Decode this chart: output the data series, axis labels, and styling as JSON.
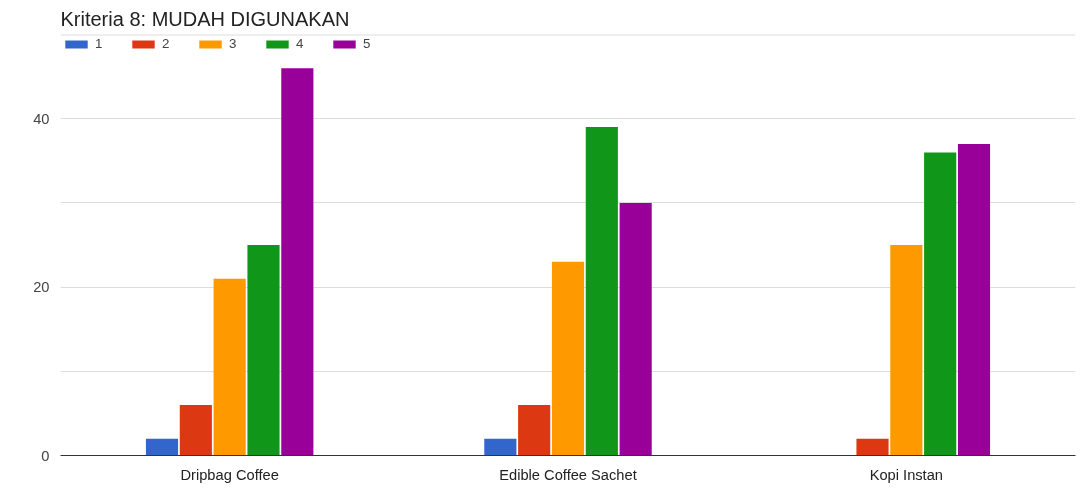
{
  "chart_data": {
    "type": "bar",
    "title": "Kriteria 8: MUDAH DIGUNAKAN",
    "categories": [
      "Dripbag Coffee",
      "Edible Coffee Sachet",
      "Kopi Instan"
    ],
    "series": [
      {
        "name": "1",
        "color": "#3366cc",
        "values": [
          2,
          2,
          0
        ]
      },
      {
        "name": "2",
        "color": "#dc3912",
        "values": [
          6,
          6,
          2
        ]
      },
      {
        "name": "3",
        "color": "#ff9900",
        "values": [
          21,
          23,
          25
        ]
      },
      {
        "name": "4",
        "color": "#109618",
        "values": [
          25,
          39,
          36
        ]
      },
      {
        "name": "5",
        "color": "#990099",
        "values": [
          46,
          30,
          37
        ]
      }
    ],
    "ylim": [
      0,
      50
    ],
    "yticks": [
      0,
      {
        "value": 10,
        "label": null
      },
      20,
      {
        "value": 30,
        "label": null
      },
      40,
      {
        "value": 50,
        "label": null
      }
    ],
    "grid": "y",
    "legend": "top"
  }
}
